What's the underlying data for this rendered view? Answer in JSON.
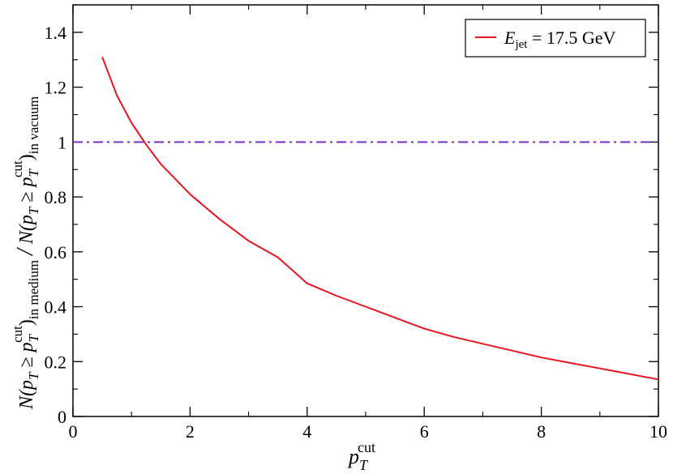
{
  "chart_data": {
    "type": "line",
    "xlabel": {
      "base": "p",
      "sub": "T",
      "sup": "cut"
    },
    "ylabel": {
      "numerator": {
        "prefix": "N(p",
        "sub1": "T",
        "geq": " ≥ p",
        "sub2": "T",
        "sup2": "cut",
        "close": ")",
        "subscript": "in medium"
      },
      "slash": "/",
      "denominator": {
        "prefix": "N(p",
        "sub1": "T",
        "geq": " ≥ p",
        "sub2": "T",
        "sup2": "cut",
        "close": ")",
        "subscript": "in vacuum"
      }
    },
    "xlim": [
      0,
      10
    ],
    "ylim": [
      0,
      1.5
    ],
    "x_ticks": [
      0,
      2,
      4,
      6,
      8,
      10
    ],
    "y_ticks": [
      0,
      0.2,
      0.4,
      0.6,
      0.8,
      1,
      1.2,
      1.4
    ],
    "x_tick_labels": [
      "0",
      "2",
      "4",
      "6",
      "8",
      "10"
    ],
    "y_tick_labels": [
      "0",
      "0.2",
      "0.4",
      "0.6",
      "0.8",
      "1",
      "1.2",
      "1.4"
    ],
    "grid": false,
    "legend": {
      "placement": "top-right",
      "entries": [
        {
          "label_base": "E",
          "label_sub": "jet",
          "label_rest": " = 17.5 GeV"
        }
      ]
    },
    "series": [
      {
        "color": "#e8141e",
        "style": "solid",
        "x": [
          0.5,
          0.75,
          1.0,
          1.25,
          1.5,
          2.0,
          2.5,
          3.0,
          3.5,
          4.0,
          4.5,
          5.0,
          5.5,
          6.0,
          6.5,
          7.0,
          7.5,
          8.0,
          8.5,
          9.0,
          9.5,
          10.0
        ],
        "y": [
          1.31,
          1.17,
          1.07,
          0.99,
          0.92,
          0.81,
          0.72,
          0.64,
          0.58,
          0.485,
          0.44,
          0.4,
          0.36,
          0.32,
          0.29,
          0.265,
          0.24,
          0.215,
          0.195,
          0.175,
          0.155,
          0.135
        ]
      }
    ],
    "reference_line": {
      "y": 1.0,
      "color": "#7b2fc9",
      "style": "dash-dot"
    }
  }
}
